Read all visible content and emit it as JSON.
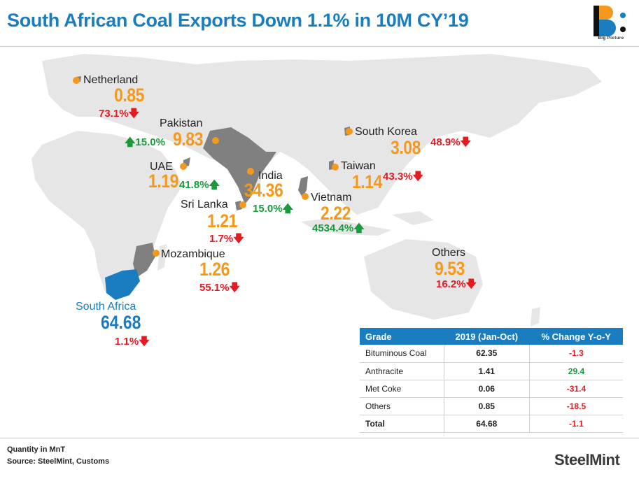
{
  "title": "South African Coal Exports Down 1.1% in 10M CY’19",
  "logo": {
    "text": "Big Picture"
  },
  "colors": {
    "title": "#1a7dc0",
    "value": "#f39a1e",
    "down": "#e31b23",
    "up": "#1a9a3b",
    "land": "#e6e6e6",
    "highlight": "#808080",
    "south_africa": "#1a7dc0"
  },
  "map": {
    "origin": {
      "name": "South Africa",
      "value": "64.68",
      "change": "1.1%",
      "direction": "down"
    },
    "destinations": [
      {
        "name": "Netherland",
        "value": "0.85",
        "change": "73.1%",
        "direction": "down"
      },
      {
        "name": "Pakistan",
        "value": "9.83",
        "change": "15.0%",
        "direction": "up"
      },
      {
        "name": "UAE",
        "value": "1.19",
        "change": "41.8%",
        "direction": "up"
      },
      {
        "name": "India",
        "value": "34.36",
        "change": "15.0%",
        "direction": "up"
      },
      {
        "name": "Sri Lanka",
        "value": "1.21",
        "change": "1.7%",
        "direction": "down"
      },
      {
        "name": "South Korea",
        "value": "3.08",
        "change": "48.9%",
        "direction": "down"
      },
      {
        "name": "Taiwan",
        "value": "1.14",
        "change": "43.3%",
        "direction": "down"
      },
      {
        "name": "Vietnam",
        "value": "2.22",
        "change": "4534.4%",
        "direction": "up"
      },
      {
        "name": "Mozambique",
        "value": "1.26",
        "change": "55.1%",
        "direction": "down"
      },
      {
        "name": "Others",
        "value": "9.53",
        "change": "16.2%",
        "direction": "down"
      }
    ]
  },
  "table": {
    "headers": [
      "Grade",
      "2019 (Jan-Oct)",
      "% Change Y-o-Y"
    ],
    "rows": [
      {
        "grade": "Bituminous Coal",
        "value": "62.35",
        "change": "-1.3"
      },
      {
        "grade": "Anthracite",
        "value": "1.41",
        "change": "29.4"
      },
      {
        "grade": "Met Coke",
        "value": "0.06",
        "change": "-31.4"
      },
      {
        "grade": "Others",
        "value": "0.85",
        "change": "-18.5"
      },
      {
        "grade": "Total",
        "value": "64.68",
        "change": "-1.1"
      }
    ]
  },
  "footer": {
    "unit": "Quantity in MnT",
    "source": "Source: SteelMint, Customs",
    "brand": "SteelMint"
  },
  "arrows": {
    "up": "🡅",
    "down": "🡇"
  }
}
